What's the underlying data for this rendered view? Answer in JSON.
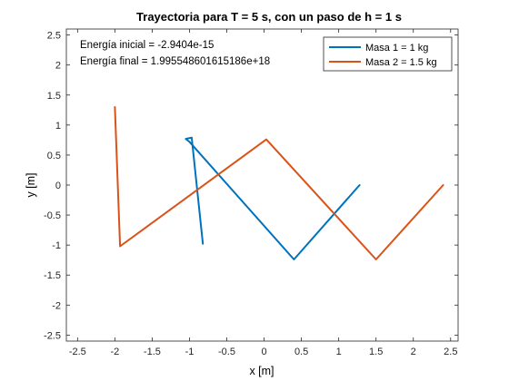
{
  "chart_data": {
    "type": "line",
    "title": "Trayectoria para T = 5 s, con un paso de h = 1 s",
    "xlabel": "x [m]",
    "ylabel": "y [m]",
    "xlim": [
      -2.65,
      2.6
    ],
    "ylim": [
      -2.6,
      2.6
    ],
    "xticks": [
      -2.5,
      -2,
      -1.5,
      -1,
      -0.5,
      0,
      0.5,
      1,
      1.5,
      2,
      2.5
    ],
    "xtick_labels": [
      "-2.5",
      "-2",
      "-1.5",
      "-1",
      "-0.5",
      "0",
      "0.5",
      "1",
      "1.5",
      "2",
      "2.5"
    ],
    "yticks": [
      -2.5,
      -2,
      -1.5,
      -1,
      -0.5,
      0,
      0.5,
      1,
      1.5,
      2,
      2.5
    ],
    "ytick_labels": [
      "-2.5",
      "-2",
      "-1.5",
      "-1",
      "-0.5",
      "0",
      "0.5",
      "1",
      "1.5",
      "2",
      "2.5"
    ],
    "grid": false,
    "legend_position": "top-right",
    "annotations": [
      "Energía inicial = -2.9404e-15",
      "Energía final = 1.995548601615186e+18"
    ],
    "series": [
      {
        "name": "Masa 1 = 1 kg",
        "color": "#0072BD",
        "x": [
          1.28,
          0.4,
          -1.0,
          -1.05,
          -0.97,
          -0.82
        ],
        "y": [
          0.0,
          -1.24,
          0.72,
          0.77,
          0.79,
          -0.98
        ]
      },
      {
        "name": "Masa 2 = 1.5 kg",
        "color": "#D95319",
        "x": [
          2.4,
          1.5,
          0.03,
          -1.93,
          -2.0
        ],
        "y": [
          0.0,
          -1.24,
          0.76,
          -1.02,
          1.3
        ]
      }
    ]
  }
}
